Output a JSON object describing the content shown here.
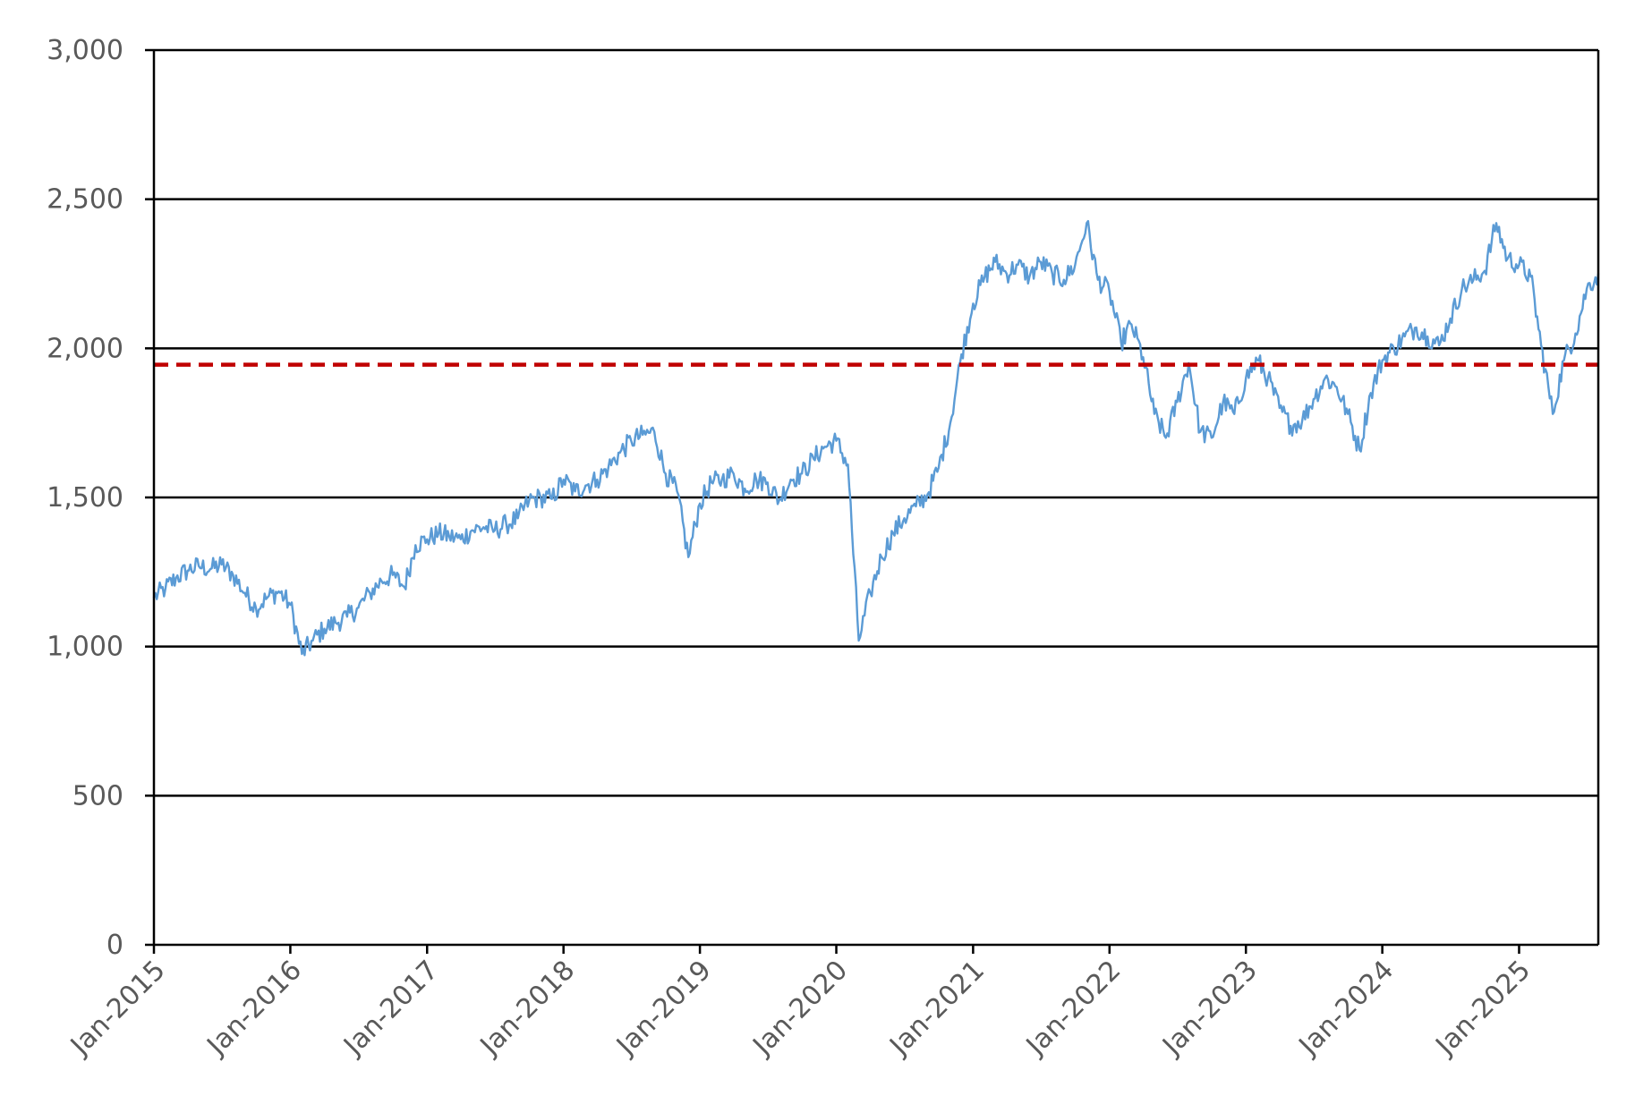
{
  "chart_data": {
    "type": "line",
    "title": "",
    "xlabel": "",
    "ylabel": "",
    "ylim": [
      0,
      3000
    ],
    "yticks": [
      {
        "value": 0,
        "label": "0"
      },
      {
        "value": 500,
        "label": "500"
      },
      {
        "value": 1000,
        "label": "1,000"
      },
      {
        "value": 1500,
        "label": "1,500"
      },
      {
        "value": 2000,
        "label": "2,000"
      },
      {
        "value": 2500,
        "label": "2,500"
      },
      {
        "value": 3000,
        "label": "3,000"
      }
    ],
    "xlim": [
      "2015-01-01",
      "2025-08-01"
    ],
    "xticks": [
      {
        "value": "2015-01-01",
        "label": "Jan-2015"
      },
      {
        "value": "2016-01-01",
        "label": "Jan-2016"
      },
      {
        "value": "2017-01-01",
        "label": "Jan-2017"
      },
      {
        "value": "2018-01-01",
        "label": "Jan-2018"
      },
      {
        "value": "2019-01-01",
        "label": "Jan-2019"
      },
      {
        "value": "2020-01-01",
        "label": "Jan-2020"
      },
      {
        "value": "2021-01-01",
        "label": "Jan-2021"
      },
      {
        "value": "2022-01-01",
        "label": "Jan-2022"
      },
      {
        "value": "2023-01-01",
        "label": "Jan-2023"
      },
      {
        "value": "2024-01-01",
        "label": "Jan-2024"
      },
      {
        "value": "2025-01-01",
        "label": "Jan-2025"
      }
    ],
    "grid": true,
    "legend": "none",
    "series": [
      {
        "color": "#5b9bd5",
        "points": [
          [
            "2015-01-01",
            1165
          ],
          [
            "2015-02-01",
            1195
          ],
          [
            "2015-03-01",
            1230
          ],
          [
            "2015-04-01",
            1255
          ],
          [
            "2015-05-01",
            1270
          ],
          [
            "2015-06-01",
            1260
          ],
          [
            "2015-07-01",
            1275
          ],
          [
            "2015-08-01",
            1240
          ],
          [
            "2015-09-01",
            1180
          ],
          [
            "2015-10-01",
            1130
          ],
          [
            "2015-11-01",
            1165
          ],
          [
            "2015-12-01",
            1185
          ],
          [
            "2016-01-01",
            1140
          ],
          [
            "2016-02-01",
            975
          ],
          [
            "2016-03-01",
            1020
          ],
          [
            "2016-04-01",
            1060
          ],
          [
            "2016-05-01",
            1080
          ],
          [
            "2016-06-01",
            1100
          ],
          [
            "2016-07-01",
            1130
          ],
          [
            "2016-08-01",
            1180
          ],
          [
            "2016-09-01",
            1220
          ],
          [
            "2016-10-01",
            1240
          ],
          [
            "2016-11-01",
            1200
          ],
          [
            "2016-12-01",
            1340
          ],
          [
            "2017-01-01",
            1360
          ],
          [
            "2017-02-01",
            1380
          ],
          [
            "2017-03-01",
            1370
          ],
          [
            "2017-04-01",
            1360
          ],
          [
            "2017-05-01",
            1390
          ],
          [
            "2017-06-01",
            1400
          ],
          [
            "2017-07-01",
            1390
          ],
          [
            "2017-08-01",
            1410
          ],
          [
            "2017-09-01",
            1430
          ],
          [
            "2017-10-01",
            1490
          ],
          [
            "2017-11-01",
            1500
          ],
          [
            "2017-12-01",
            1495
          ],
          [
            "2018-01-01",
            1560
          ],
          [
            "2018-02-01",
            1520
          ],
          [
            "2018-03-01",
            1540
          ],
          [
            "2018-04-01",
            1560
          ],
          [
            "2018-05-01",
            1600
          ],
          [
            "2018-06-01",
            1650
          ],
          [
            "2018-07-01",
            1690
          ],
          [
            "2018-08-01",
            1710
          ],
          [
            "2018-09-01",
            1720
          ],
          [
            "2018-10-01",
            1580
          ],
          [
            "2018-11-01",
            1520
          ],
          [
            "2018-12-01",
            1300
          ],
          [
            "2019-01-01",
            1480
          ],
          [
            "2019-02-01",
            1550
          ],
          [
            "2019-03-01",
            1560
          ],
          [
            "2019-04-01",
            1580
          ],
          [
            "2019-05-01",
            1530
          ],
          [
            "2019-06-01",
            1560
          ],
          [
            "2019-07-01",
            1550
          ],
          [
            "2019-08-01",
            1490
          ],
          [
            "2019-09-01",
            1560
          ],
          [
            "2019-10-01",
            1580
          ],
          [
            "2019-11-01",
            1630
          ],
          [
            "2019-12-01",
            1670
          ],
          [
            "2020-01-01",
            1690
          ],
          [
            "2020-02-01",
            1610
          ],
          [
            "2020-03-01",
            1020
          ],
          [
            "2020-04-01",
            1180
          ],
          [
            "2020-05-01",
            1300
          ],
          [
            "2020-06-01",
            1380
          ],
          [
            "2020-07-01",
            1430
          ],
          [
            "2020-08-01",
            1470
          ],
          [
            "2020-09-01",
            1510
          ],
          [
            "2020-10-01",
            1600
          ],
          [
            "2020-11-01",
            1750
          ],
          [
            "2020-12-01",
            1980
          ],
          [
            "2021-01-01",
            2150
          ],
          [
            "2021-02-01",
            2240
          ],
          [
            "2021-03-01",
            2290
          ],
          [
            "2021-04-01",
            2250
          ],
          [
            "2021-05-01",
            2280
          ],
          [
            "2021-06-01",
            2240
          ],
          [
            "2021-07-01",
            2290
          ],
          [
            "2021-08-01",
            2250
          ],
          [
            "2021-09-01",
            2230
          ],
          [
            "2021-10-01",
            2280
          ],
          [
            "2021-11-01",
            2420
          ],
          [
            "2021-12-01",
            2230
          ],
          [
            "2022-01-01",
            2190
          ],
          [
            "2022-02-01",
            2020
          ],
          [
            "2022-03-01",
            2080
          ],
          [
            "2022-04-01",
            1970
          ],
          [
            "2022-05-01",
            1780
          ],
          [
            "2022-06-01",
            1700
          ],
          [
            "2022-07-01",
            1820
          ],
          [
            "2022-08-01",
            1950
          ],
          [
            "2022-09-01",
            1720
          ],
          [
            "2022-10-01",
            1700
          ],
          [
            "2022-11-01",
            1820
          ],
          [
            "2022-12-01",
            1780
          ],
          [
            "2023-01-01",
            1900
          ],
          [
            "2023-02-01",
            1960
          ],
          [
            "2023-03-01",
            1900
          ],
          [
            "2023-04-01",
            1800
          ],
          [
            "2023-05-01",
            1740
          ],
          [
            "2023-06-01",
            1760
          ],
          [
            "2023-07-01",
            1830
          ],
          [
            "2023-08-01",
            1900
          ],
          [
            "2023-09-01",
            1870
          ],
          [
            "2023-10-01",
            1780
          ],
          [
            "2023-11-01",
            1660
          ],
          [
            "2023-12-01",
            1850
          ],
          [
            "2024-01-01",
            1960
          ],
          [
            "2024-02-01",
            2000
          ],
          [
            "2024-03-01",
            2040
          ],
          [
            "2024-04-01",
            2070
          ],
          [
            "2024-05-01",
            2040
          ],
          [
            "2024-06-01",
            2010
          ],
          [
            "2024-07-01",
            2100
          ],
          [
            "2024-08-01",
            2200
          ],
          [
            "2024-09-01",
            2230
          ],
          [
            "2024-10-01",
            2260
          ],
          [
            "2024-11-01",
            2420
          ],
          [
            "2024-12-01",
            2300
          ],
          [
            "2025-01-01",
            2280
          ],
          [
            "2025-02-01",
            2240
          ],
          [
            "2025-03-01",
            2010
          ],
          [
            "2025-04-01",
            1780
          ],
          [
            "2025-05-01",
            1960
          ],
          [
            "2025-06-01",
            2050
          ],
          [
            "2025-07-01",
            2200
          ],
          [
            "2025-08-01",
            2250
          ]
        ]
      }
    ],
    "reference_line": {
      "value": 1945,
      "color": "#c00000",
      "style": "dashed"
    }
  }
}
